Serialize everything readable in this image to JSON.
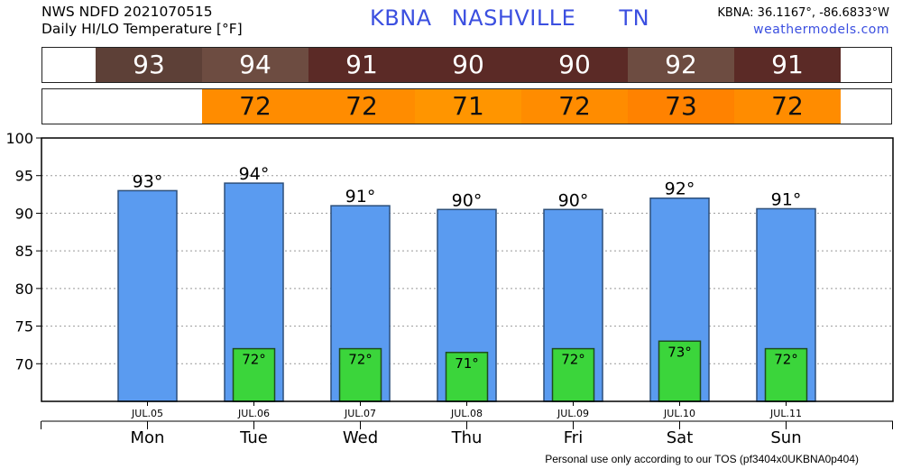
{
  "header": {
    "line1": "NWS NDFD 2021070515",
    "line2": "Daily HI/LO Temperature [°F]",
    "station": "KBNA",
    "city": "NASHVILLE",
    "state": "TN",
    "coords": "KBNA: 36.1167°, -86.6833°W",
    "site": "weathermodels.com"
  },
  "hi_strip": [
    {
      "text": "93",
      "color": "#5d4037"
    },
    {
      "text": "94",
      "color": "#6d4c41"
    },
    {
      "text": "91",
      "color": "#5b2a26"
    },
    {
      "text": "90",
      "color": "#5b2a26"
    },
    {
      "text": "90",
      "color": "#5b2a26"
    },
    {
      "text": "92",
      "color": "#6d4c41"
    },
    {
      "text": "91",
      "color": "#5b2a26"
    }
  ],
  "lo_strip": [
    {
      "text": "",
      "color": "#ffffff"
    },
    {
      "text": "72",
      "color": "#ff8c00"
    },
    {
      "text": "72",
      "color": "#ff8c00"
    },
    {
      "text": "71",
      "color": "#ff9500"
    },
    {
      "text": "72",
      "color": "#ff8c00"
    },
    {
      "text": "73",
      "color": "#ff8200"
    },
    {
      "text": "72",
      "color": "#ff8c00"
    }
  ],
  "chart_data": {
    "type": "bar",
    "categories": [
      "Mon",
      "Tue",
      "Wed",
      "Thu",
      "Fri",
      "Sat",
      "Sun"
    ],
    "dates": [
      "JUL.05",
      "JUL.06",
      "JUL.07",
      "JUL.08",
      "JUL.09",
      "JUL.10",
      "JUL.11"
    ],
    "series": [
      {
        "values": [
          93,
          94,
          91,
          90.5,
          90.5,
          92,
          90.6
        ],
        "labels": [
          "93°",
          "94°",
          "91°",
          "90°",
          "90°",
          "92°",
          "91°"
        ],
        "color": "#5a9bf0"
      },
      {
        "values": [
          null,
          72,
          72,
          71.5,
          72,
          73,
          72
        ],
        "labels": [
          "",
          "72°",
          "72°",
          "71°",
          "72°",
          "73°",
          "72°"
        ],
        "color": "#3bd53b"
      }
    ],
    "ylim": [
      65,
      100
    ],
    "yticks": [
      70,
      75,
      80,
      85,
      90,
      95,
      100
    ],
    "grid": true
  },
  "footer": "Personal use only according to our TOS (pf3404x0UKBNA0p404)"
}
